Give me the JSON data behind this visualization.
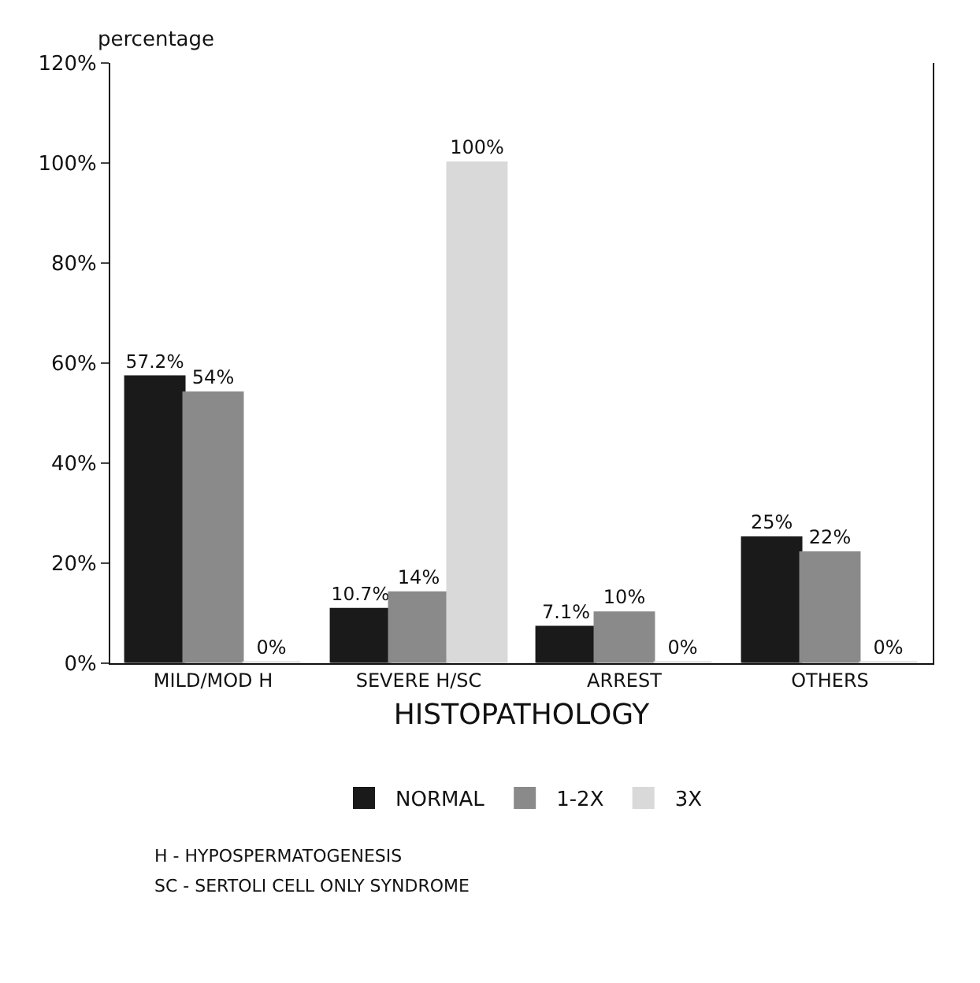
{
  "chart_data": {
    "type": "bar",
    "ylabel": "percentage",
    "xlabel": "HISTOPATHOLOGY",
    "categories": [
      "MILD/MOD H",
      "SEVERE H/SC",
      "ARREST",
      "OTHERS"
    ],
    "series": [
      {
        "name": "NORMAL",
        "color": "#1a1a1a",
        "values": [
          57.2,
          10.7,
          7.1,
          25
        ],
        "value_labels": [
          "57.2%",
          "10.7%",
          "7.1%",
          "25%"
        ]
      },
      {
        "name": "1-2X",
        "color": "#8a8a8a",
        "values": [
          54,
          14,
          10,
          22
        ],
        "value_labels": [
          "54%",
          "14%",
          "10%",
          "22%"
        ]
      },
      {
        "name": "3X",
        "color": "#d9d9d9",
        "values": [
          0,
          100,
          0,
          0
        ],
        "value_labels": [
          "0%",
          "100%",
          "0%",
          "0%"
        ]
      }
    ],
    "ylim": [
      0,
      120
    ],
    "yticks": [
      {
        "value": 0,
        "label": "0%"
      },
      {
        "value": 20,
        "label": "20%"
      },
      {
        "value": 40,
        "label": "40%"
      },
      {
        "value": 60,
        "label": "60%"
      },
      {
        "value": 80,
        "label": "80%"
      },
      {
        "value": 100,
        "label": "100%"
      },
      {
        "value": 120,
        "label": "120%"
      }
    ],
    "legend": "bottom",
    "annotations": [
      "H - HYPOSPERMATOGENESIS",
      "SC - SERTOLI CELL ONLY SYNDROME"
    ]
  }
}
